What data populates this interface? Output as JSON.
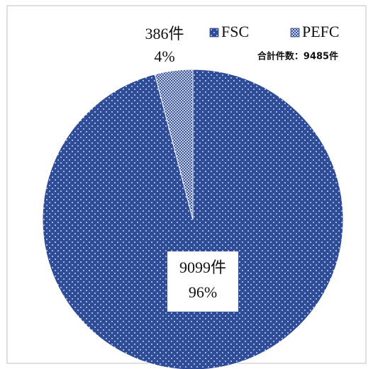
{
  "chart_data": {
    "type": "pie",
    "categories": [
      "FSC",
      "PEFC"
    ],
    "values": [
      9099,
      386
    ],
    "value_labels": [
      "9099件",
      "386件"
    ],
    "percent_labels": [
      "96%",
      "4%"
    ],
    "colors": [
      "#2f4c98",
      "#ffffff"
    ],
    "annotation": "合計件数：9485件",
    "legend": "top-right"
  }
}
